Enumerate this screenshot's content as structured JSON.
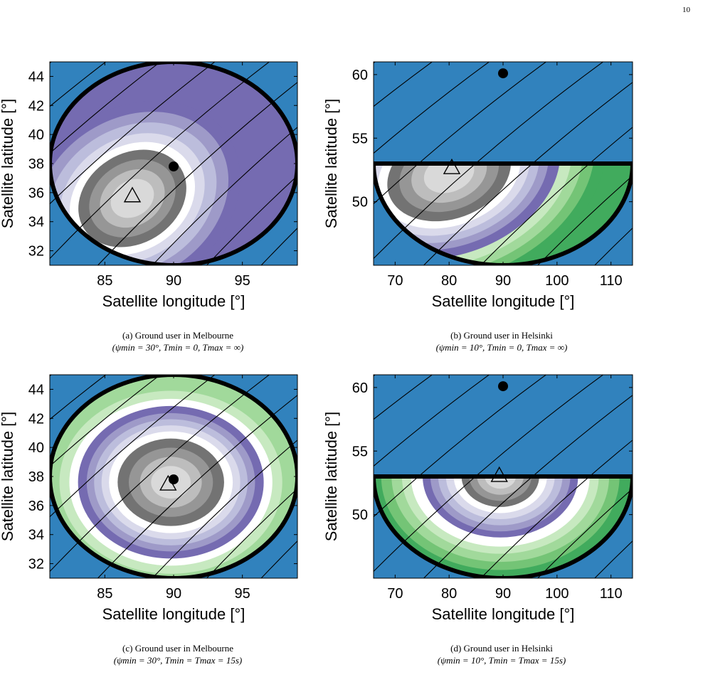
{
  "page": {
    "number": "10"
  },
  "colors": {
    "background": "#3182bd",
    "gray_levels": [
      "#d9d9d9",
      "#bdbdbd",
      "#969696",
      "#737373"
    ],
    "purple_levels": [
      "#dadaeb",
      "#bcbddc",
      "#9e9ac8",
      "#756bb1"
    ],
    "green_levels": [
      "#c7e9c0",
      "#a1d99b",
      "#74c476",
      "#41ab5d"
    ],
    "boundary": "#000000"
  },
  "chart_data": [
    {
      "id": "a",
      "type": "heatmap",
      "caption": "(a) Ground user in Melbourne",
      "params": "(ψmin = 30°, Tmin = 0, Tmax = ∞)",
      "xlabel": "Satellite longitude [°]",
      "ylabel": "Satellite latitude [°]",
      "xlim": [
        81,
        99
      ],
      "ylim": [
        31,
        45
      ],
      "xticks": [
        85,
        90,
        95
      ],
      "yticks": [
        32,
        34,
        36,
        38,
        40,
        42,
        44
      ],
      "region": {
        "shape": "ellipse",
        "center": [
          90,
          38
        ],
        "radius": [
          9,
          7
        ]
      },
      "levels_center": [
        87,
        35.6
      ],
      "levels_radius": [
        8.3,
        6.2
      ],
      "levels_rotation": -32,
      "level_colors": [
        "#756bb1",
        "#9e9ac8",
        "#bcbddc",
        "#dadaeb",
        "#ffffff",
        "#737373",
        "#969696",
        "#bdbdbd",
        "#d9d9d9"
      ],
      "level_fractions": [
        1.0,
        0.89,
        0.78,
        0.67,
        0.58,
        0.5,
        0.4,
        0.3,
        0.2
      ],
      "user_marker": [
        90,
        37.8
      ],
      "optimum_marker": [
        87,
        35.8
      ]
    },
    {
      "id": "b",
      "type": "heatmap",
      "caption": "(b) Ground user in Helsinki",
      "params": "(ψmin = 10°, Tmin = 0, Tmax = ∞)",
      "xlabel": "Satellite longitude [°]",
      "ylabel": "Satellite latitude [°]",
      "xlim": [
        66,
        114
      ],
      "ylim": [
        45,
        61
      ],
      "xticks": [
        70,
        80,
        90,
        100,
        110
      ],
      "yticks": [
        50,
        55,
        60
      ],
      "region": {
        "shape": "half-ellipse",
        "center": [
          90,
          53
        ],
        "radius": [
          24,
          8
        ]
      },
      "levels_center": [
        80,
        52.2
      ],
      "levels_radius": [
        10,
        3
      ],
      "levels_rotation": -20,
      "level_colors": [
        "#41ab5d",
        "#74c476",
        "#a1d99b",
        "#c7e9c0",
        "#756bb1",
        "#9e9ac8",
        "#bcbddc",
        "#dadaeb",
        "#ffffff",
        "#737373",
        "#969696",
        "#bdbdbd",
        "#d9d9d9"
      ],
      "level_fractions": [
        3.0,
        2.78,
        2.56,
        2.34,
        2.12,
        1.9,
        1.72,
        1.54,
        1.36,
        1.18,
        0.95,
        0.72,
        0.48
      ],
      "user_marker": [
        90,
        60.1
      ],
      "optimum_marker": [
        80.5,
        52.7
      ]
    },
    {
      "id": "c",
      "type": "heatmap",
      "caption": "(c) Ground user in Melbourne",
      "params": "(ψmin = 30°, Tmin = Tmax = 15s)",
      "xlabel": "Satellite longitude [°]",
      "ylabel": "Satellite latitude [°]",
      "xlim": [
        81,
        99
      ],
      "ylim": [
        31,
        45
      ],
      "xticks": [
        85,
        90,
        95
      ],
      "yticks": [
        32,
        34,
        36,
        38,
        40,
        42,
        44
      ],
      "region": {
        "shape": "ellipse",
        "center": [
          90,
          38
        ],
        "radius": [
          9,
          7
        ]
      },
      "levels_center": [
        89.8,
        37.6
      ],
      "levels_radius": [
        9,
        7
      ],
      "levels_rotation": 0,
      "level_colors": [
        "#a1d99b",
        "#c7e9c0",
        "#ffffff",
        "#756bb1",
        "#9e9ac8",
        "#bcbddc",
        "#dadaeb",
        "#ffffff",
        "#737373",
        "#969696",
        "#bdbdbd",
        "#d9d9d9"
      ],
      "level_fractions": [
        1.0,
        0.9,
        0.82,
        0.75,
        0.68,
        0.62,
        0.56,
        0.5,
        0.43,
        0.34,
        0.25,
        0.16
      ],
      "user_marker": [
        90,
        37.8
      ],
      "optimum_marker": [
        89.6,
        37.5
      ]
    },
    {
      "id": "d",
      "type": "heatmap",
      "caption": "(d) Ground user in Helsinki",
      "params": "(ψmin = 10°, Tmin = Tmax = 15s)",
      "xlabel": "Satellite longitude [°]",
      "ylabel": "Satellite latitude [°]",
      "xlim": [
        66,
        114
      ],
      "ylim": [
        45,
        61
      ],
      "xticks": [
        70,
        80,
        90,
        100,
        110
      ],
      "yticks": [
        50,
        55,
        60
      ],
      "region": {
        "shape": "half-ellipse",
        "center": [
          90,
          53
        ],
        "radius": [
          24,
          8
        ]
      },
      "levels_center": [
        89.5,
        53
      ],
      "levels_radius": [
        24,
        8
      ],
      "levels_rotation": 0,
      "level_colors": [
        "#41ab5d",
        "#74c476",
        "#a1d99b",
        "#c7e9c0",
        "#ffffff",
        "#756bb1",
        "#9e9ac8",
        "#bcbddc",
        "#dadaeb",
        "#ffffff",
        "#737373",
        "#969696",
        "#bdbdbd",
        "#d9d9d9"
      ],
      "level_fractions": [
        1.0,
        0.92,
        0.84,
        0.76,
        0.69,
        0.6,
        0.54,
        0.48,
        0.42,
        0.36,
        0.3,
        0.24,
        0.18,
        0.12
      ],
      "user_marker": [
        90,
        60.1
      ],
      "optimum_marker": [
        89.3,
        53.1
      ]
    }
  ]
}
